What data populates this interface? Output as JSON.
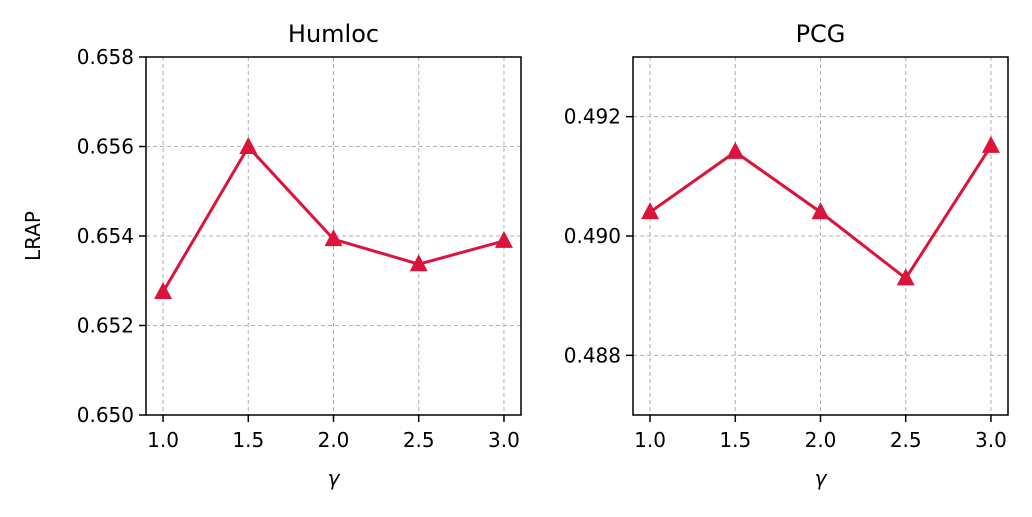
{
  "chart_data": [
    {
      "type": "line",
      "title": "Humloc",
      "xlabel": "γ",
      "ylabel": "LRAP",
      "x": [
        1.0,
        1.5,
        2.0,
        2.5,
        3.0
      ],
      "series": [
        {
          "color": "#dc143c",
          "values": [
            0.65275,
            0.65599,
            0.65393,
            0.65337,
            0.65389
          ]
        }
      ],
      "xlim": [
        0.9,
        3.1
      ],
      "xticks": [
        {
          "value": 1,
          "label": "1.0"
        },
        {
          "value": 1.5,
          "label": "1.5"
        },
        {
          "value": 2,
          "label": "2.0"
        },
        {
          "value": 2.5,
          "label": "2.5"
        },
        {
          "value": 3,
          "label": "3.0"
        }
      ],
      "ylim": [
        0.65,
        0.658
      ],
      "yticks": [
        {
          "value": 0.65,
          "label": "0.650"
        },
        {
          "value": 0.652,
          "label": "0.652"
        },
        {
          "value": 0.654,
          "label": "0.654"
        },
        {
          "value": 0.656,
          "label": "0.656"
        },
        {
          "value": 0.658,
          "label": "0.658"
        }
      ],
      "grid": true
    },
    {
      "type": "line",
      "title": "PCG",
      "xlabel": "γ",
      "x": [
        1.0,
        1.5,
        2.0,
        2.5,
        3.0
      ],
      "series": [
        {
          "color": "#dc143c",
          "values": [
            0.4904,
            0.49141,
            0.4904,
            0.48929,
            0.49151
          ]
        }
      ],
      "xlim": [
        0.9,
        3.1
      ],
      "xticks": [
        {
          "value": 1,
          "label": "1.0"
        },
        {
          "value": 1.5,
          "label": "1.5"
        },
        {
          "value": 2,
          "label": "2.0"
        },
        {
          "value": 2.5,
          "label": "2.5"
        },
        {
          "value": 3,
          "label": "3.0"
        }
      ],
      "ylim": [
        0.487,
        0.493
      ],
      "yticks": [
        {
          "value": 0.488,
          "label": "0.488"
        },
        {
          "value": 0.49,
          "label": "0.490"
        },
        {
          "value": 0.492,
          "label": "0.492"
        }
      ],
      "grid": true
    }
  ]
}
